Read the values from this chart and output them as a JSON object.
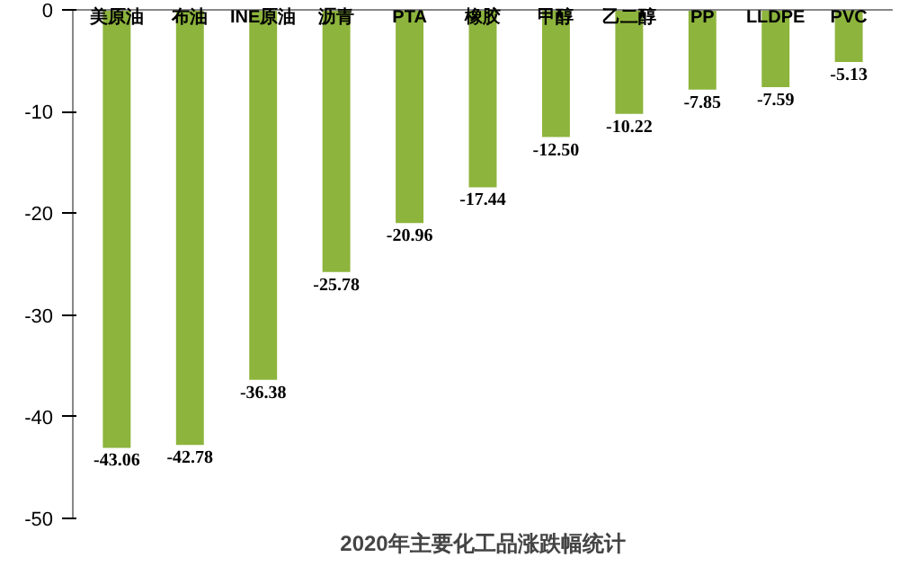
{
  "chart_data": {
    "type": "bar",
    "title": "2020年主要化工品涨跌幅统计",
    "categories": [
      "美原油",
      "布油",
      "INE原油",
      "沥青",
      "PTA",
      "橡胶",
      "甲醇",
      "乙二醇",
      "PP",
      "LLDPE",
      "PVC"
    ],
    "values": [
      -43.06,
      -42.78,
      -36.38,
      -25.78,
      -20.96,
      -17.44,
      -12.5,
      -10.22,
      -7.85,
      -7.59,
      -5.13
    ],
    "value_labels": [
      "-43.06",
      "-42.78",
      "-36.38",
      "-25.78",
      "-20.96",
      "-17.44",
      "-12.50",
      "-10.22",
      "-7.85",
      "-7.59",
      "-5.13"
    ],
    "color": "#8db43c",
    "ylim": [
      -50,
      0
    ],
    "yticks": [
      -50,
      -40,
      -30,
      -20,
      -10,
      0
    ],
    "grid": false
  }
}
